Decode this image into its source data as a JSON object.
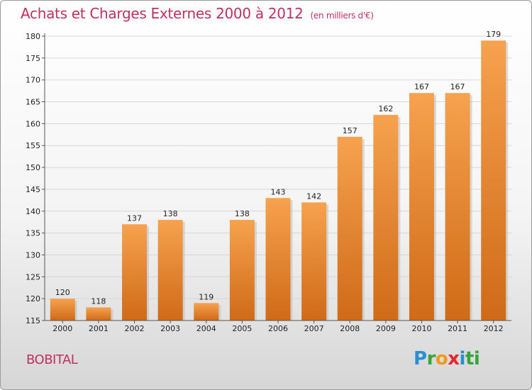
{
  "header": {
    "title": "Achats et Charges Externes 2000 à 2012",
    "subtitle": "(en milliers d'€)"
  },
  "footer": {
    "town": "BOBITAL",
    "logo": [
      "P",
      "r",
      "o",
      "x",
      "i",
      "ti"
    ]
  },
  "colors": {
    "accent": "#c0305e",
    "bar_top": "#f6a24e",
    "bar_bottom": "#cf6a18"
  },
  "chart_data": {
    "type": "bar",
    "title": "Achats et Charges Externes 2000 à 2012",
    "subtitle": "(en milliers d'€)",
    "categories": [
      "2000",
      "2001",
      "2002",
      "2003",
      "2004",
      "2005",
      "2006",
      "2007",
      "2008",
      "2009",
      "2010",
      "2011",
      "2012"
    ],
    "values": [
      120,
      118,
      137,
      138,
      119,
      138,
      143,
      142,
      157,
      162,
      167,
      167,
      179
    ],
    "ylim": [
      115,
      180
    ],
    "yticks": [
      115,
      120,
      125,
      130,
      135,
      140,
      145,
      150,
      155,
      160,
      165,
      170,
      175,
      180
    ],
    "grid": true
  }
}
